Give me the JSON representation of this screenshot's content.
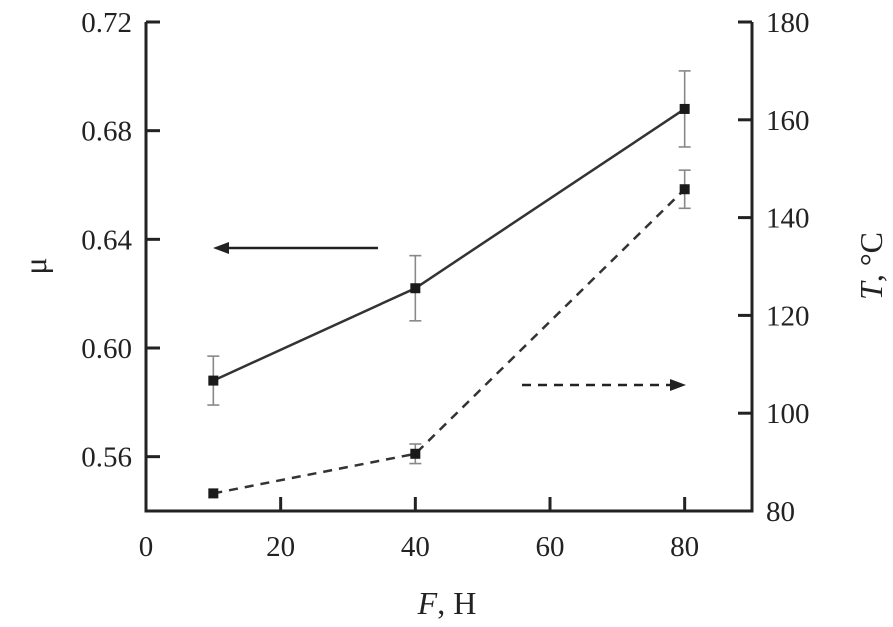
{
  "chart_data": {
    "type": "line",
    "xlabel": "F, Н",
    "xlabel_parts": {
      "var": "F",
      "unit": ", Н"
    },
    "ylabel": "μ",
    "y2label": "T, °C",
    "y2label_parts": {
      "var": "T",
      "unit": ", °C"
    },
    "xlim": [
      0,
      90
    ],
    "ylim": [
      0.54,
      0.72
    ],
    "y2lim": [
      80,
      180
    ],
    "xticks": [
      "0",
      "20",
      "40",
      "60",
      "80"
    ],
    "yticks": [
      "0.56",
      "0.60",
      "0.64",
      "0.68",
      "0.72"
    ],
    "y2ticks": [
      "80",
      "100",
      "120",
      "140",
      "160",
      "180"
    ],
    "grid": false,
    "series": [
      {
        "axis": "left",
        "style": "solid",
        "marker": "square",
        "color": "#333333",
        "x": [
          10,
          40,
          80
        ],
        "y": [
          0.588,
          0.622,
          0.688
        ],
        "yerr": [
          0.009,
          0.012,
          0.014
        ]
      },
      {
        "axis": "right",
        "style": "dashed",
        "marker": "square",
        "color": "#333333",
        "x": [
          10,
          40,
          80
        ],
        "y": [
          83.6,
          91.7,
          145.8
        ],
        "yerr": [
          0,
          2.0,
          3.9
        ]
      }
    ],
    "annotations": [
      {
        "type": "arrow",
        "style": "solid",
        "direction": "left",
        "points_to": "left axis"
      },
      {
        "type": "arrow",
        "style": "dashed",
        "direction": "right",
        "points_to": "right axis"
      }
    ]
  }
}
